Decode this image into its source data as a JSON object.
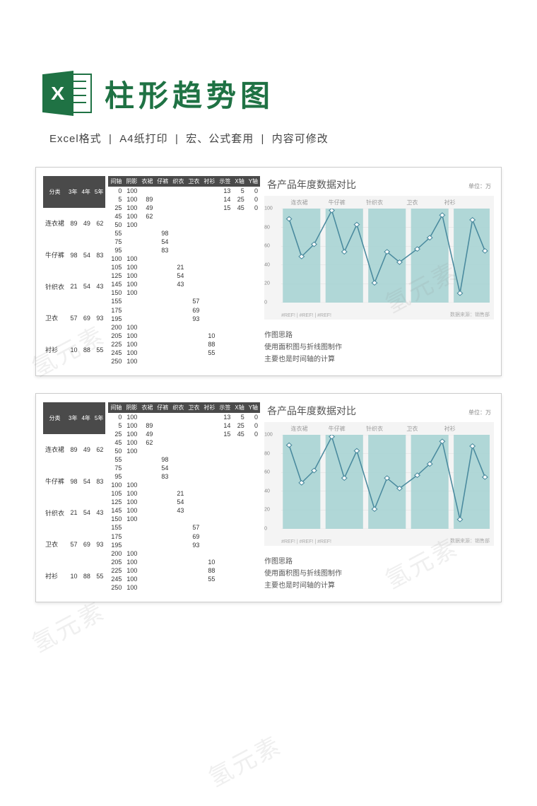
{
  "header": {
    "title": "柱形趋势图",
    "icon_letter": "X",
    "subtitle_parts": [
      "Excel格式",
      "A4纸打印",
      "宏、公式套用",
      "内容可修改"
    ]
  },
  "watermark_text": "氢元素",
  "colors": {
    "brand_green": "#1f7244",
    "panel_border": "#cccccc",
    "chart_bg": "#f4f4f4",
    "area_fill": "#a3d1d1",
    "line_stroke": "#4a8a9e",
    "marker_fill": "#ffffff",
    "grid": "#dddddd",
    "table_header_bg": "#4a4a4a"
  },
  "table1": {
    "headers": [
      "分类",
      "3年",
      "4年",
      "5年"
    ],
    "rows": [
      [
        "连衣裙",
        89,
        49,
        62
      ],
      [
        "牛仔裤",
        98,
        54,
        83
      ],
      [
        "针织衣",
        21,
        54,
        43
      ],
      [
        "卫衣",
        57,
        69,
        93
      ],
      [
        "衬衫",
        10,
        88,
        55
      ]
    ]
  },
  "table2": {
    "headers": [
      "间轴",
      "阴影",
      "衣裙",
      "仔裤",
      "织衣",
      "卫衣",
      "衬衫",
      "示签",
      "X轴",
      "Y轴"
    ],
    "rows": [
      [
        0,
        100,
        "",
        "",
        "",
        "",
        "",
        13,
        5,
        0
      ],
      [
        5,
        100,
        89,
        "",
        "",
        "",
        "",
        14,
        25,
        0
      ],
      [
        25,
        100,
        49,
        "",
        "",
        "",
        "",
        15,
        45,
        0
      ],
      [
        45,
        100,
        62,
        "",
        "",
        "",
        "",
        "",
        "",
        ""
      ],
      [
        50,
        100,
        "",
        "",
        "",
        "",
        "",
        "",
        "",
        ""
      ],
      [
        55,
        "",
        "",
        98,
        "",
        "",
        "",
        "",
        "",
        ""
      ],
      [
        75,
        "",
        "",
        54,
        "",
        "",
        "",
        "",
        "",
        ""
      ],
      [
        95,
        "",
        "",
        83,
        "",
        "",
        "",
        "",
        "",
        ""
      ],
      [
        100,
        100,
        "",
        "",
        "",
        "",
        "",
        "",
        "",
        ""
      ],
      [
        105,
        100,
        "",
        "",
        21,
        "",
        "",
        "",
        "",
        ""
      ],
      [
        125,
        100,
        "",
        "",
        54,
        "",
        "",
        "",
        "",
        ""
      ],
      [
        145,
        100,
        "",
        "",
        43,
        "",
        "",
        "",
        "",
        ""
      ],
      [
        150,
        100,
        "",
        "",
        "",
        "",
        "",
        "",
        "",
        ""
      ],
      [
        155,
        "",
        "",
        "",
        "",
        57,
        "",
        "",
        "",
        ""
      ],
      [
        175,
        "",
        "",
        "",
        "",
        69,
        "",
        "",
        "",
        ""
      ],
      [
        195,
        "",
        "",
        "",
        "",
        93,
        "",
        "",
        "",
        ""
      ],
      [
        200,
        100,
        "",
        "",
        "",
        "",
        "",
        "",
        "",
        ""
      ],
      [
        205,
        100,
        "",
        "",
        "",
        "",
        10,
        "",
        "",
        ""
      ],
      [
        225,
        100,
        "",
        "",
        "",
        "",
        88,
        "",
        "",
        ""
      ],
      [
        245,
        100,
        "",
        "",
        "",
        "",
        55,
        "",
        "",
        ""
      ],
      [
        250,
        100,
        "",
        "",
        "",
        "",
        "",
        "",
        "",
        ""
      ]
    ]
  },
  "chart": {
    "title": "各产品年度数据对比",
    "unit": "单位：万",
    "categories": [
      "连衣裙",
      "牛仔裤",
      "针织衣",
      "卫衣",
      "衬衫"
    ],
    "ylim": [
      0,
      100
    ],
    "ytick_step": 20,
    "area_level": 100,
    "segment_width_pct": 18,
    "gap_pct": 2.5,
    "series": [
      [
        89,
        49,
        62
      ],
      [
        98,
        54,
        83
      ],
      [
        21,
        54,
        43
      ],
      [
        57,
        69,
        93
      ],
      [
        10,
        88,
        55
      ]
    ],
    "xref_label_left": "#REF! | #REF! | #REF!",
    "source_label": "数据来源：销售部"
  },
  "notes": {
    "title": "作图思路",
    "line1": "使用面积图与折线图制作",
    "line2": "主要也是时间轴的计算"
  }
}
